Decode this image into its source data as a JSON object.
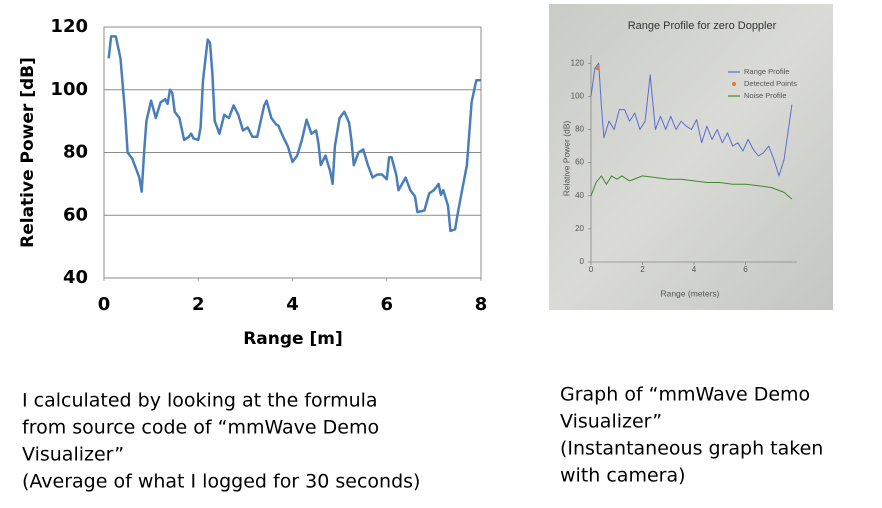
{
  "chart_data": [
    {
      "type": "line",
      "xlabel": "Range [m]",
      "ylabel": "Relative Power [dB]",
      "xlim": [
        0,
        8
      ],
      "ylim": [
        40,
        120
      ],
      "xticks": [
        0,
        2,
        4,
        6,
        8
      ],
      "yticks": [
        40,
        60,
        80,
        100,
        120
      ],
      "grid": true,
      "series": [
        {
          "color": "#4a7ebb",
          "x": [
            0.1,
            0.15,
            0.25,
            0.35,
            0.45,
            0.5,
            0.6,
            0.7,
            0.75,
            0.8,
            0.85,
            0.9,
            1.0,
            1.1,
            1.2,
            1.3,
            1.35,
            1.4,
            1.45,
            1.5,
            1.6,
            1.7,
            1.8,
            1.85,
            1.9,
            2.0,
            2.05,
            2.1,
            2.2,
            2.25,
            2.3,
            2.35,
            2.45,
            2.55,
            2.65,
            2.75,
            2.85,
            2.95,
            3.05,
            3.15,
            3.25,
            3.4,
            3.45,
            3.55,
            3.65,
            3.7,
            3.8,
            3.9,
            4.0,
            4.1,
            4.2,
            4.3,
            4.4,
            4.5,
            4.55,
            4.6,
            4.7,
            4.8,
            4.85,
            4.9,
            5.0,
            5.1,
            5.2,
            5.25,
            5.3,
            5.4,
            5.5,
            5.6,
            5.7,
            5.8,
            5.9,
            6.0,
            6.05,
            6.1,
            6.2,
            6.25,
            6.4,
            6.5,
            6.6,
            6.65,
            6.8,
            6.9,
            7.0,
            7.1,
            7.15,
            7.2,
            7.3,
            7.35,
            7.45,
            7.5,
            7.6,
            7.7,
            7.8,
            7.9,
            8.0
          ],
          "values": [
            110,
            117,
            117,
            110,
            92,
            80,
            78,
            74,
            72,
            67.5,
            80,
            90,
            96.5,
            91,
            96,
            97,
            95.5,
            100,
            99,
            93,
            91,
            84,
            85,
            86,
            84.5,
            84,
            88,
            103,
            116,
            115,
            105,
            90,
            86,
            92,
            91,
            95,
            92,
            87,
            88,
            85,
            85,
            95,
            96.5,
            91,
            89,
            88.5,
            85,
            82,
            77,
            79,
            84,
            90.5,
            86,
            87,
            83,
            76,
            79,
            74,
            70,
            82,
            91,
            93,
            89.5,
            84,
            76,
            80,
            81,
            76,
            72,
            73,
            73,
            71.5,
            78.5,
            78.5,
            73,
            68,
            72,
            68,
            66,
            61,
            61.5,
            67,
            68,
            70,
            66.5,
            68,
            63,
            55,
            55.5,
            60,
            68,
            76,
            96,
            103,
            103
          ]
        }
      ]
    },
    {
      "type": "line",
      "title": "Range Profile for zero Doppler",
      "xlabel": "Range (meters)",
      "ylabel": "Relative Power (dB)",
      "xlim": [
        0,
        8
      ],
      "ylim": [
        0,
        125
      ],
      "xticks": [
        0,
        2,
        4,
        6
      ],
      "yticks": [
        0,
        20,
        40,
        60,
        80,
        100,
        120
      ],
      "grid": false,
      "legend": "top-right",
      "series": [
        {
          "name": "Range Profile",
          "color": "#5b6ed0",
          "x": [
            0,
            0.15,
            0.3,
            0.4,
            0.5,
            0.7,
            0.9,
            1.1,
            1.3,
            1.5,
            1.7,
            1.9,
            2.1,
            2.3,
            2.5,
            2.7,
            2.9,
            3.1,
            3.3,
            3.5,
            3.7,
            3.9,
            4.1,
            4.3,
            4.5,
            4.7,
            4.9,
            5.1,
            5.3,
            5.5,
            5.7,
            5.9,
            6.1,
            6.3,
            6.5,
            6.7,
            6.9,
            7.1,
            7.3,
            7.5,
            7.8
          ],
          "values": [
            100,
            117,
            120,
            95,
            75,
            85,
            80,
            92,
            92,
            85,
            90,
            80,
            85,
            113,
            80,
            88,
            80,
            88,
            80,
            85,
            82,
            80,
            86,
            72,
            82,
            74,
            80,
            72,
            78,
            70,
            72,
            67,
            74,
            68,
            64,
            66,
            70,
            62,
            52,
            62,
            95
          ]
        },
        {
          "name": "Detected Points",
          "color": "#e07b2a",
          "style": "markers",
          "x": [
            0.25
          ],
          "values": [
            117
          ]
        },
        {
          "name": "Noise Profile",
          "color": "#3f8a2e",
          "x": [
            0,
            0.2,
            0.4,
            0.6,
            0.8,
            1.0,
            1.2,
            1.5,
            2.0,
            2.5,
            3.0,
            3.5,
            4.0,
            4.5,
            5.0,
            5.5,
            6.0,
            6.5,
            7.0,
            7.5,
            7.8
          ],
          "values": [
            40,
            48,
            52,
            47,
            52,
            50,
            52,
            49,
            52,
            51,
            50,
            50,
            49,
            48,
            48,
            47,
            47,
            46,
            45,
            42,
            38
          ]
        }
      ]
    }
  ],
  "captions": [
    {
      "lines": [
        "I calculated by looking at the formula",
        "from source code of “mmWave Demo",
        "Visualizer”",
        "(Average of what I logged for 30 seconds)"
      ]
    },
    {
      "lines": [
        "Graph of “mmWave Demo",
        "Visualizer”",
        "(Instantaneous graph taken",
        "with camera)"
      ]
    }
  ]
}
